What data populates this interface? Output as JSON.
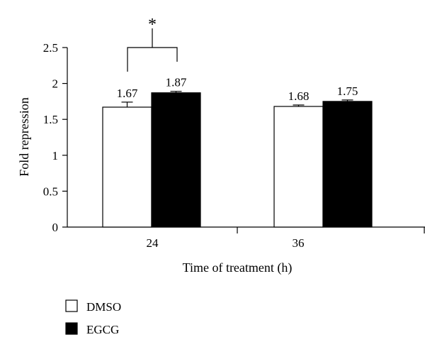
{
  "chart_data": {
    "type": "bar",
    "title": "",
    "xlabel": "Time of treatment (h)",
    "ylabel": "Fold repression",
    "ylim": [
      0,
      2.5
    ],
    "yticks": [
      0,
      0.5,
      1,
      1.5,
      2,
      2.5
    ],
    "ytick_labels": [
      "0",
      "0.5",
      "1",
      "1.5",
      "2",
      "2.5"
    ],
    "categories": [
      "24",
      "36"
    ],
    "series": [
      {
        "name": "DMSO",
        "color": "#ffffff",
        "values": [
          1.67,
          1.68
        ],
        "errors": [
          0.07,
          0.02
        ],
        "labels": [
          "1.67",
          "1.68"
        ]
      },
      {
        "name": "EGCG",
        "color": "#000000",
        "values": [
          1.87,
          1.75
        ],
        "errors": [
          0.02,
          0.02
        ],
        "labels": [
          "1.87",
          "1.75"
        ]
      }
    ],
    "annotations": [
      {
        "category": "24",
        "text": "*",
        "type": "significance-bracket"
      }
    ],
    "legend": {
      "position": "bottom-left"
    },
    "grid": false
  }
}
